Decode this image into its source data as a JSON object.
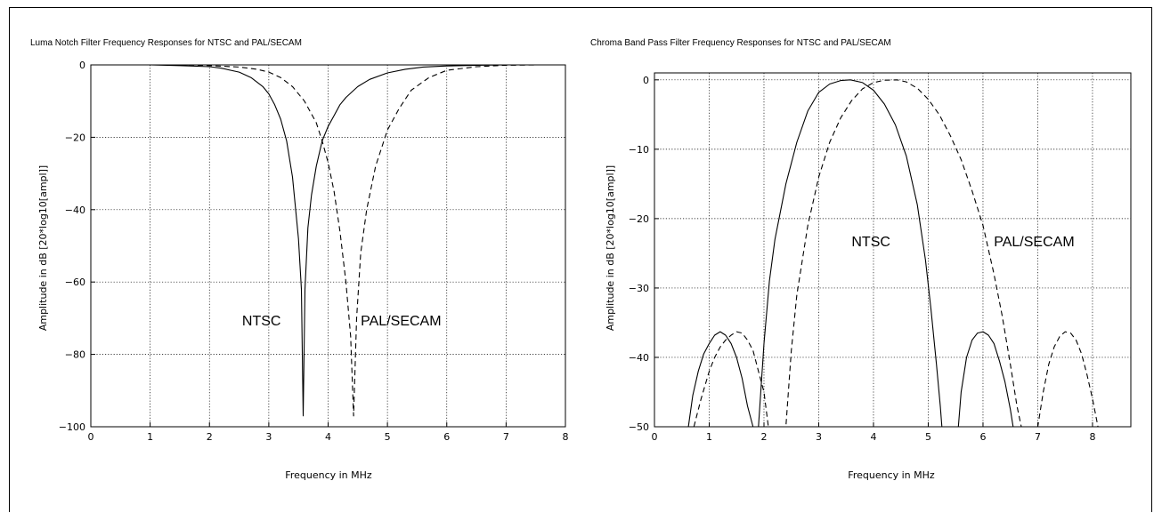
{
  "chart_data": [
    {
      "type": "line",
      "title": "Luma Notch Filter Frequency Responses for NTSC and PAL/SECAM",
      "xlabel": "Frequency in MHz",
      "ylabel": "Amplitude in dB [20*log10[ampl]]",
      "xlim": [
        0,
        8
      ],
      "ylim": [
        -100,
        0
      ],
      "xticks": [
        "0",
        "1",
        "2",
        "3",
        "4",
        "5",
        "6",
        "7",
        "8"
      ],
      "yticks": [
        "0",
        "−20",
        "−40",
        "−60",
        "−80",
        "−100"
      ],
      "grid": true,
      "annotations": [
        {
          "text": "NTSC",
          "x": 2.55,
          "y": -72
        },
        {
          "text": "PAL/SECAM",
          "x": 4.55,
          "y": -72
        }
      ],
      "series": [
        {
          "name": "NTSC",
          "style": "solid",
          "x": [
            0,
            0.5,
            1,
            1.5,
            2,
            2.2,
            2.5,
            2.7,
            2.9,
            3.0,
            3.1,
            3.2,
            3.3,
            3.4,
            3.5,
            3.55,
            3.58,
            3.61,
            3.66,
            3.72,
            3.8,
            3.9,
            4.0,
            4.1,
            4.2,
            4.3,
            4.5,
            4.7,
            5.0,
            5.3,
            5.6,
            6.0,
            6.5,
            7,
            7.5,
            8
          ],
          "y": [
            0,
            0,
            0,
            -0.2,
            -0.5,
            -0.9,
            -2,
            -3.5,
            -6,
            -8,
            -11,
            -15,
            -21,
            -31,
            -48,
            -62,
            -97,
            -62,
            -45,
            -36,
            -28,
            -21,
            -17,
            -14,
            -11,
            -9,
            -6,
            -4,
            -2.2,
            -1.2,
            -0.6,
            -0.3,
            -0.1,
            0,
            0,
            0
          ]
        },
        {
          "name": "PAL/SECAM",
          "style": "dashed",
          "x": [
            0,
            0.5,
            1,
            1.5,
            2,
            2.5,
            2.8,
            3.0,
            3.2,
            3.4,
            3.6,
            3.8,
            3.9,
            4.0,
            4.1,
            4.2,
            4.3,
            4.38,
            4.43,
            4.48,
            4.55,
            4.65,
            4.8,
            5.0,
            5.2,
            5.4,
            5.7,
            6.0,
            6.5,
            7,
            7.5,
            8
          ],
          "y": [
            0,
            0,
            0,
            0,
            -0.2,
            -0.6,
            -1.2,
            -2,
            -3.5,
            -6,
            -10,
            -16,
            -21,
            -27,
            -35,
            -46,
            -60,
            -75,
            -97,
            -70,
            -52,
            -40,
            -28,
            -18,
            -12,
            -7,
            -3.5,
            -1.5,
            -0.5,
            -0.1,
            0,
            0
          ]
        }
      ]
    },
    {
      "type": "line",
      "title": "Chroma Band Pass Filter Frequency Responses for NTSC and PAL/SECAM",
      "xlabel": "Frequency in MHz",
      "ylabel": "Amplitude in dB [20*log10[ampl]]",
      "xlim": [
        0,
        8.7
      ],
      "ylim": [
        -50,
        1
      ],
      "xticks": [
        "0",
        "1",
        "2",
        "3",
        "4",
        "5",
        "6",
        "7",
        "8"
      ],
      "yticks": [
        "0",
        "−10",
        "−20",
        "−30",
        "−40",
        "−50"
      ],
      "grid": true,
      "annotations": [
        {
          "text": "NTSC",
          "x": 3.6,
          "y": -24
        },
        {
          "text": "PAL/SECAM",
          "x": 6.2,
          "y": -24
        }
      ],
      "series": [
        {
          "name": "NTSC",
          "style": "solid",
          "x": [
            0.62,
            0.7,
            0.8,
            0.9,
            1.0,
            1.1,
            1.2,
            1.3,
            1.4,
            1.5,
            1.6,
            1.7,
            1.8,
            1.9,
            2.0,
            2.1,
            2.2,
            2.4,
            2.6,
            2.8,
            3.0,
            3.2,
            3.4,
            3.58,
            3.8,
            4.0,
            4.2,
            4.4,
            4.6,
            4.8,
            4.95,
            5.05,
            5.15,
            5.22,
            5.25,
            5.55,
            5.6,
            5.7,
            5.8,
            5.9,
            6.0,
            6.1,
            6.2,
            6.3,
            6.4,
            6.5,
            6.55
          ],
          "y": [
            -50,
            -45.5,
            -42,
            -39.5,
            -38,
            -36.8,
            -36.3,
            -36.8,
            -38,
            -40,
            -43,
            -47,
            -50,
            -50,
            -38,
            -29,
            -23,
            -15,
            -9,
            -4.5,
            -1.8,
            -0.6,
            -0.1,
            0,
            -0.4,
            -1.5,
            -3.5,
            -6.5,
            -11,
            -18,
            -26,
            -33,
            -41,
            -47,
            -50,
            -50,
            -45,
            -40,
            -37.5,
            -36.5,
            -36.3,
            -36.8,
            -38,
            -40.5,
            -43.5,
            -47.5,
            -50
          ]
        },
        {
          "name": "PAL/SECAM",
          "style": "dashed",
          "x": [
            0.72,
            0.85,
            1.0,
            1.1,
            1.2,
            1.3,
            1.4,
            1.5,
            1.6,
            1.7,
            1.8,
            1.9,
            2.0,
            2.08,
            2.4,
            2.5,
            2.6,
            2.8,
            3.0,
            3.2,
            3.4,
            3.6,
            3.8,
            4.0,
            4.2,
            4.43,
            4.6,
            4.8,
            5.0,
            5.2,
            5.4,
            5.6,
            5.8,
            6.0,
            6.2,
            6.35,
            6.5,
            6.62,
            6.7,
            7.0,
            7.1,
            7.2,
            7.3,
            7.4,
            7.5,
            7.6,
            7.7,
            7.8,
            7.9,
            8.0,
            8.1
          ],
          "y": [
            -50,
            -46,
            -42,
            -40,
            -38.5,
            -37.5,
            -36.8,
            -36.3,
            -36.5,
            -37.5,
            -39,
            -42,
            -45,
            -50,
            -50,
            -39,
            -31,
            -21,
            -14,
            -9,
            -5.5,
            -3,
            -1.3,
            -0.4,
            -0.05,
            0,
            -0.3,
            -1.2,
            -2.8,
            -5,
            -8,
            -11.5,
            -16,
            -21,
            -28,
            -34,
            -41,
            -47,
            -50,
            -50,
            -45,
            -41,
            -38.5,
            -37,
            -36.3,
            -36.5,
            -37.5,
            -39.5,
            -42.5,
            -46,
            -50
          ]
        }
      ]
    }
  ]
}
